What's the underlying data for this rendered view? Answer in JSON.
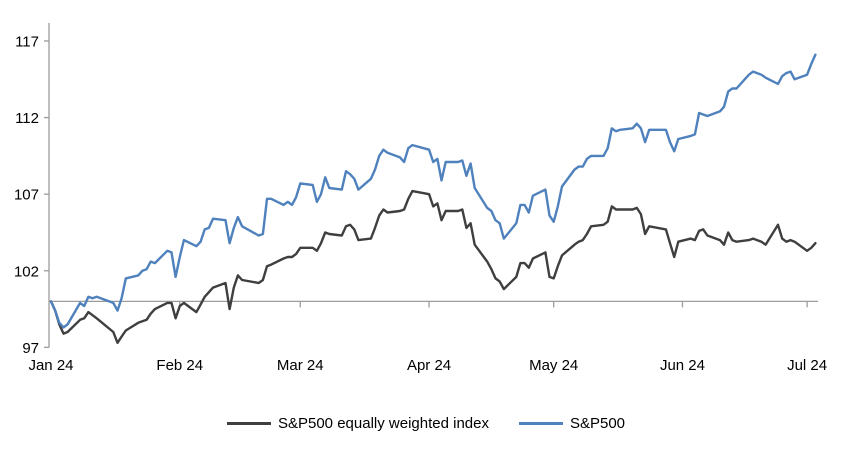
{
  "chart_data": {
    "type": "line",
    "title": "",
    "x_axis": {
      "tick_labels": [
        "Jan 24",
        "Feb 24",
        "Mar 24",
        "Apr 24",
        "May 24",
        "Jun 24",
        "Jul 24"
      ],
      "tick_dates": [
        "2024-01-01",
        "2024-02-01",
        "2024-03-01",
        "2024-04-01",
        "2024-05-01",
        "2024-06-01",
        "2024-07-01"
      ]
    },
    "y_axis": {
      "ticks": [
        97,
        102,
        107,
        112,
        117
      ],
      "range": [
        97,
        118.2
      ],
      "baseline": 100
    },
    "grid": "off",
    "legend_position": "bottom-center",
    "dates": [
      "2024-01-01",
      "2024-01-02",
      "2024-01-03",
      "2024-01-04",
      "2024-01-05",
      "2024-01-08",
      "2024-01-09",
      "2024-01-10",
      "2024-01-11",
      "2024-01-12",
      "2024-01-16",
      "2024-01-17",
      "2024-01-18",
      "2024-01-19",
      "2024-01-22",
      "2024-01-23",
      "2024-01-24",
      "2024-01-25",
      "2024-01-26",
      "2024-01-29",
      "2024-01-30",
      "2024-01-31",
      "2024-02-01",
      "2024-02-02",
      "2024-02-05",
      "2024-02-06",
      "2024-02-07",
      "2024-02-08",
      "2024-02-09",
      "2024-02-12",
      "2024-02-13",
      "2024-02-14",
      "2024-02-15",
      "2024-02-16",
      "2024-02-20",
      "2024-02-21",
      "2024-02-22",
      "2024-02-23",
      "2024-02-26",
      "2024-02-27",
      "2024-02-28",
      "2024-02-29",
      "2024-03-01",
      "2024-03-04",
      "2024-03-05",
      "2024-03-06",
      "2024-03-07",
      "2024-03-08",
      "2024-03-11",
      "2024-03-12",
      "2024-03-13",
      "2024-03-14",
      "2024-03-15",
      "2024-03-18",
      "2024-03-19",
      "2024-03-20",
      "2024-03-21",
      "2024-03-22",
      "2024-03-25",
      "2024-03-26",
      "2024-03-27",
      "2024-03-28",
      "2024-04-01",
      "2024-04-02",
      "2024-04-03",
      "2024-04-04",
      "2024-04-05",
      "2024-04-08",
      "2024-04-09",
      "2024-04-10",
      "2024-04-11",
      "2024-04-12",
      "2024-04-15",
      "2024-04-16",
      "2024-04-17",
      "2024-04-18",
      "2024-04-19",
      "2024-04-22",
      "2024-04-23",
      "2024-04-24",
      "2024-04-25",
      "2024-04-26",
      "2024-04-29",
      "2024-04-30",
      "2024-05-01",
      "2024-05-02",
      "2024-05-03",
      "2024-05-06",
      "2024-05-07",
      "2024-05-08",
      "2024-05-09",
      "2024-05-10",
      "2024-05-13",
      "2024-05-14",
      "2024-05-15",
      "2024-05-16",
      "2024-05-17",
      "2024-05-20",
      "2024-05-21",
      "2024-05-22",
      "2024-05-23",
      "2024-05-24",
      "2024-05-28",
      "2024-05-29",
      "2024-05-30",
      "2024-05-31",
      "2024-06-03",
      "2024-06-04",
      "2024-06-05",
      "2024-06-06",
      "2024-06-07",
      "2024-06-10",
      "2024-06-11",
      "2024-06-12",
      "2024-06-13",
      "2024-06-14",
      "2024-06-17",
      "2024-06-18",
      "2024-06-20",
      "2024-06-21",
      "2024-06-24",
      "2024-06-25",
      "2024-06-26",
      "2024-06-27",
      "2024-06-28",
      "2024-07-01",
      "2024-07-02",
      "2024-07-03"
    ],
    "series": [
      {
        "name": "S&P500 equally weighted index",
        "color": "#3F3F3F",
        "values": [
          100.0,
          99.4,
          98.5,
          97.9,
          98.0,
          98.8,
          98.9,
          99.3,
          99.1,
          98.9,
          98.0,
          97.3,
          97.7,
          98.1,
          98.6,
          98.7,
          98.8,
          99.2,
          99.5,
          99.9,
          99.9,
          98.9,
          99.7,
          99.9,
          99.3,
          99.8,
          100.3,
          100.6,
          100.9,
          101.2,
          99.5,
          100.9,
          101.7,
          101.4,
          101.2,
          101.4,
          102.3,
          102.4,
          102.8,
          102.9,
          102.9,
          103.1,
          103.5,
          103.5,
          103.3,
          103.8,
          104.5,
          104.4,
          104.3,
          104.9,
          105.0,
          104.7,
          104.0,
          104.1,
          104.8,
          105.6,
          106.0,
          105.8,
          105.9,
          106.0,
          106.7,
          107.2,
          107.0,
          106.2,
          106.4,
          105.3,
          105.9,
          105.9,
          106.0,
          104.8,
          105.1,
          103.7,
          102.6,
          102.1,
          101.5,
          101.3,
          100.8,
          101.6,
          102.5,
          102.5,
          102.2,
          102.8,
          103.2,
          101.6,
          101.5,
          102.3,
          103.0,
          103.7,
          103.9,
          104.0,
          104.4,
          104.9,
          105.0,
          105.2,
          106.2,
          106.0,
          106.0,
          106.0,
          106.1,
          105.7,
          104.4,
          104.9,
          104.7,
          103.8,
          102.9,
          103.9,
          104.1,
          104.0,
          104.6,
          104.7,
          104.3,
          104.0,
          103.7,
          104.5,
          104.0,
          103.9,
          104.0,
          104.1,
          103.9,
          103.7,
          105.0,
          104.1,
          103.9,
          104.0,
          103.9,
          103.3,
          103.5,
          103.8
        ]
      },
      {
        "name": "S&P500",
        "color": "#4F81BD",
        "values": [
          100.0,
          99.4,
          98.6,
          98.3,
          98.5,
          99.9,
          99.7,
          100.3,
          100.2,
          100.3,
          99.9,
          99.4,
          100.2,
          101.5,
          101.7,
          102.0,
          102.1,
          102.6,
          102.5,
          103.3,
          103.2,
          101.6,
          102.9,
          104.0,
          103.6,
          103.9,
          104.7,
          104.8,
          105.4,
          105.3,
          103.8,
          104.8,
          105.5,
          104.9,
          104.3,
          104.4,
          106.7,
          106.7,
          106.3,
          106.5,
          106.3,
          106.8,
          107.7,
          107.6,
          106.5,
          107.0,
          108.1,
          107.4,
          107.3,
          108.5,
          108.3,
          108.0,
          107.3,
          108.0,
          108.6,
          109.5,
          109.9,
          109.7,
          109.4,
          109.1,
          110.0,
          110.2,
          109.9,
          109.1,
          109.3,
          107.9,
          109.1,
          109.1,
          109.2,
          108.2,
          109.0,
          107.4,
          106.1,
          105.9,
          105.3,
          105.1,
          104.1,
          105.1,
          106.3,
          106.3,
          105.8,
          106.9,
          107.3,
          105.6,
          105.2,
          106.2,
          107.5,
          108.6,
          108.8,
          108.8,
          109.3,
          109.5,
          109.5,
          110.0,
          111.3,
          111.1,
          111.2,
          111.3,
          111.6,
          111.3,
          110.4,
          111.2,
          111.2,
          110.4,
          109.8,
          110.6,
          110.8,
          110.9,
          112.3,
          112.2,
          112.1,
          112.4,
          112.7,
          113.7,
          113.9,
          113.9,
          114.8,
          115.0,
          114.8,
          114.6,
          114.2,
          114.7,
          114.9,
          115.0,
          114.5,
          114.8,
          115.5,
          116.1
        ]
      }
    ]
  },
  "colors": {
    "axis": "#9C9C9C",
    "background": "#FFFFFF",
    "text": "#000000"
  }
}
